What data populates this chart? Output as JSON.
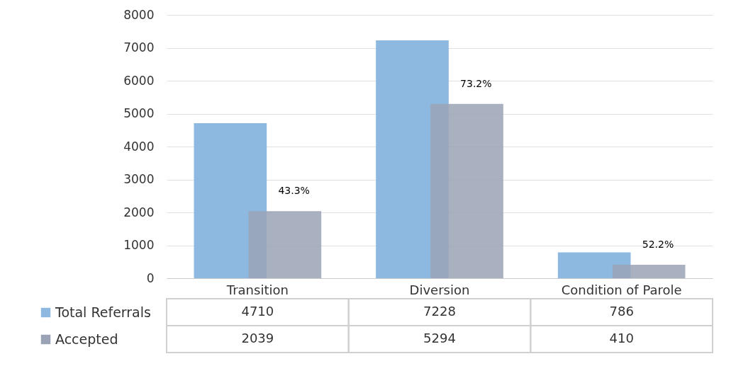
{
  "chart_data": {
    "type": "bar",
    "categories": [
      "Transition",
      "Diversion",
      "Condition of Parole"
    ],
    "series": [
      {
        "name": "Total Referrals",
        "color": "#8db9e1",
        "values": [
          4710,
          7228,
          786
        ]
      },
      {
        "name": "Accepted",
        "color": "#9aa3b6",
        "values": [
          2039,
          5294,
          410
        ]
      }
    ],
    "ylim": [
      0,
      8000
    ],
    "yticks": [
      0,
      1000,
      2000,
      3000,
      4000,
      5000,
      6000,
      7000,
      8000
    ],
    "grid": "y",
    "legend": "bottom left",
    "data_labels": true,
    "annotations": [
      {
        "text": "43.3%",
        "x": "Transition",
        "y": 2039
      },
      {
        "text": "73.2%",
        "x": "Diversion",
        "y": 5294
      },
      {
        "text": "52.2%",
        "x": "Condition of Parole",
        "y": 410
      }
    ]
  }
}
